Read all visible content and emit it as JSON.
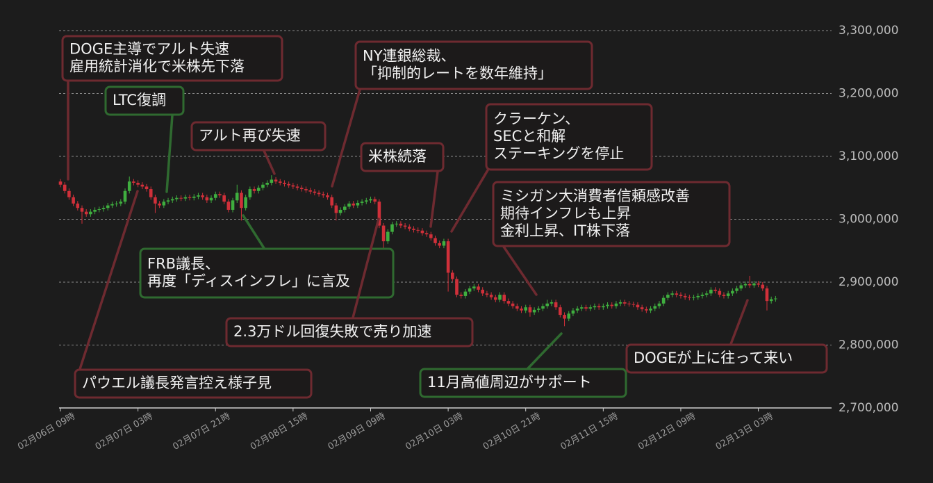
{
  "chart_data": {
    "type": "candlestick",
    "up_color": "#3fae3f",
    "down_color": "#d0303a",
    "grid": true,
    "xlim": [
      0,
      179
    ],
    "xticks": [
      {
        "value": 0,
        "label": "02月06日 09時"
      },
      {
        "value": 18,
        "label": "02月07日 03時"
      },
      {
        "value": 36,
        "label": "02月07日 21時"
      },
      {
        "value": 54,
        "label": "02月08日 15時"
      },
      {
        "value": 72,
        "label": "02月09日 09時"
      },
      {
        "value": 90,
        "label": "02月10日 03時"
      },
      {
        "value": 108,
        "label": "02月10日 21時"
      },
      {
        "value": 126,
        "label": "02月11日 15時"
      },
      {
        "value": 144,
        "label": "02月12日 09時"
      },
      {
        "value": 162,
        "label": "02月13日 03時"
      }
    ],
    "ylim": [
      2700000,
      3300000
    ],
    "yticks": [
      {
        "value": 2700000,
        "label": "2,700,000"
      },
      {
        "value": 2800000,
        "label": "2,800,000"
      },
      {
        "value": 2900000,
        "label": "2,900,000"
      },
      {
        "value": 3000000,
        "label": "3,000,000"
      },
      {
        "value": 3100000,
        "label": "3,100,000"
      },
      {
        "value": 3200000,
        "label": "3,200,000"
      },
      {
        "value": 3300000,
        "label": "3,300,000"
      }
    ],
    "x": [
      0,
      1,
      2,
      3,
      4,
      5,
      6,
      7,
      8,
      9,
      10,
      11,
      12,
      13,
      14,
      15,
      16,
      17,
      18,
      19,
      20,
      21,
      22,
      23,
      24,
      25,
      26,
      27,
      28,
      29,
      30,
      31,
      32,
      33,
      34,
      35,
      36,
      37,
      38,
      39,
      40,
      41,
      42,
      43,
      44,
      45,
      46,
      47,
      48,
      49,
      50,
      51,
      52,
      53,
      54,
      55,
      56,
      57,
      58,
      59,
      60,
      61,
      62,
      63,
      64,
      65,
      66,
      67,
      68,
      69,
      70,
      71,
      72,
      73,
      74,
      75,
      76,
      77,
      78,
      79,
      80,
      81,
      82,
      83,
      84,
      85,
      86,
      87,
      88,
      89,
      90,
      91,
      92,
      93,
      94,
      95,
      96,
      97,
      98,
      99,
      100,
      101,
      102,
      103,
      104,
      105,
      106,
      107,
      108,
      109,
      110,
      111,
      112,
      113,
      114,
      115,
      116,
      117,
      118,
      119,
      120,
      121,
      122,
      123,
      124,
      125,
      126,
      127,
      128,
      129,
      130,
      131,
      132,
      133,
      134,
      135,
      136,
      137,
      138,
      139,
      140,
      141,
      142,
      143,
      144,
      145,
      146,
      147,
      148,
      149,
      150,
      151,
      152,
      153,
      154,
      155,
      156,
      157,
      158,
      159,
      160,
      161,
      162,
      163,
      164,
      165,
      166
    ],
    "ohlc": [
      [
        3060000,
        3064000,
        3051000,
        3055000
      ],
      [
        3055000,
        3059000,
        3041000,
        3045000
      ],
      [
        3045000,
        3049000,
        3031000,
        3035000
      ],
      [
        3035000,
        3039000,
        3021000,
        3025000
      ],
      [
        3025000,
        3029000,
        3014000,
        3018000
      ],
      [
        3018000,
        3022000,
        2993000,
        3012000
      ],
      [
        3012000,
        3016000,
        3004000,
        3008000
      ],
      [
        3008000,
        3016000,
        3004000,
        3012000
      ],
      [
        3012000,
        3019000,
        3008000,
        3015000
      ],
      [
        3015000,
        3020000,
        3011000,
        3016000
      ],
      [
        3016000,
        3022000,
        3012000,
        3018000
      ],
      [
        3018000,
        3026000,
        3014000,
        3022000
      ],
      [
        3022000,
        3028000,
        3018000,
        3024000
      ],
      [
        3024000,
        3029000,
        3020000,
        3025000
      ],
      [
        3025000,
        3032000,
        3021000,
        3028000
      ],
      [
        3028000,
        3049000,
        3024000,
        3045000
      ],
      [
        3045000,
        3068000,
        3041000,
        3060000
      ],
      [
        3060000,
        3064000,
        3054000,
        3058000
      ],
      [
        3058000,
        3062000,
        3051000,
        3055000
      ],
      [
        3055000,
        3059000,
        3048000,
        3052000
      ],
      [
        3052000,
        3056000,
        3044000,
        3048000
      ],
      [
        3048000,
        3052000,
        3031000,
        3035000
      ],
      [
        3035000,
        3039000,
        3010000,
        3025000
      ],
      [
        3025000,
        3029000,
        3018000,
        3022000
      ],
      [
        3022000,
        3032000,
        3018000,
        3028000
      ],
      [
        3028000,
        3034000,
        3024000,
        3030000
      ],
      [
        3030000,
        3036000,
        3026000,
        3032000
      ],
      [
        3032000,
        3038000,
        3028000,
        3034000
      ],
      [
        3034000,
        3038000,
        3029000,
        3033000
      ],
      [
        3033000,
        3039000,
        3029000,
        3035000
      ],
      [
        3035000,
        3039000,
        3030000,
        3034000
      ],
      [
        3034000,
        3040000,
        3030000,
        3036000
      ],
      [
        3036000,
        3042000,
        3032000,
        3038000
      ],
      [
        3038000,
        3042000,
        3031000,
        3035000
      ],
      [
        3035000,
        3039000,
        3026000,
        3030000
      ],
      [
        3030000,
        3038000,
        3026000,
        3034000
      ],
      [
        3034000,
        3044000,
        3030000,
        3040000
      ],
      [
        3040000,
        3044000,
        3034000,
        3038000
      ],
      [
        3038000,
        3042000,
        3024000,
        3028000
      ],
      [
        3028000,
        3032000,
        3011000,
        3015000
      ],
      [
        3015000,
        3034000,
        3011000,
        3030000
      ],
      [
        3030000,
        3055000,
        3026000,
        3042000
      ],
      [
        3042000,
        3046000,
        2998000,
        3018000
      ],
      [
        3018000,
        3039000,
        3014000,
        3035000
      ],
      [
        3035000,
        3052000,
        3031000,
        3048000
      ],
      [
        3048000,
        3052000,
        3041000,
        3045000
      ],
      [
        3045000,
        3054000,
        3041000,
        3050000
      ],
      [
        3050000,
        3059000,
        3046000,
        3055000
      ],
      [
        3055000,
        3062000,
        3051000,
        3058000
      ],
      [
        3058000,
        3070000,
        3054000,
        3063000
      ],
      [
        3063000,
        3067000,
        3056000,
        3060000
      ],
      [
        3060000,
        3064000,
        3054000,
        3058000
      ],
      [
        3058000,
        3062000,
        3052000,
        3056000
      ],
      [
        3056000,
        3060000,
        3050000,
        3054000
      ],
      [
        3054000,
        3058000,
        3048000,
        3052000
      ],
      [
        3052000,
        3056000,
        3046000,
        3050000
      ],
      [
        3050000,
        3054000,
        3044000,
        3048000
      ],
      [
        3048000,
        3052000,
        3042000,
        3046000
      ],
      [
        3046000,
        3050000,
        3040000,
        3044000
      ],
      [
        3044000,
        3048000,
        3038000,
        3042000
      ],
      [
        3042000,
        3046000,
        3036000,
        3040000
      ],
      [
        3040000,
        3044000,
        3034000,
        3038000
      ],
      [
        3038000,
        3042000,
        3031000,
        3035000
      ],
      [
        3035000,
        3039000,
        3018000,
        3022000
      ],
      [
        3022000,
        3026000,
        2998000,
        3010000
      ],
      [
        3010000,
        3019000,
        3006000,
        3015000
      ],
      [
        3015000,
        3024000,
        3011000,
        3020000
      ],
      [
        3020000,
        3029000,
        3016000,
        3025000
      ],
      [
        3025000,
        3029000,
        3018000,
        3022000
      ],
      [
        3022000,
        3030000,
        3018000,
        3026000
      ],
      [
        3026000,
        3032000,
        3022000,
        3028000
      ],
      [
        3028000,
        3034000,
        3024000,
        3030000
      ],
      [
        3030000,
        3036000,
        3026000,
        3032000
      ],
      [
        3032000,
        3036000,
        3024000,
        3028000
      ],
      [
        3028000,
        3032000,
        2986000,
        2990000
      ],
      [
        2990000,
        2994000,
        2950000,
        2965000
      ],
      [
        2965000,
        2984000,
        2961000,
        2980000
      ],
      [
        2980000,
        2996000,
        2976000,
        2992000
      ],
      [
        2992000,
        2997000,
        2988000,
        2993000
      ],
      [
        2993000,
        2997000,
        2986000,
        2990000
      ],
      [
        2990000,
        2994000,
        2984000,
        2988000
      ],
      [
        2988000,
        2992000,
        2981000,
        2985000
      ],
      [
        2985000,
        2989000,
        2979000,
        2983000
      ],
      [
        2983000,
        2987000,
        2978000,
        2982000
      ],
      [
        2982000,
        2986000,
        2974000,
        2978000
      ],
      [
        2978000,
        2982000,
        2972000,
        2976000
      ],
      [
        2976000,
        2980000,
        2966000,
        2970000
      ],
      [
        2970000,
        2974000,
        2958000,
        2962000
      ],
      [
        2962000,
        2966000,
        2954000,
        2958000
      ],
      [
        2958000,
        2969000,
        2954000,
        2965000
      ],
      [
        2965000,
        2969000,
        2885000,
        2915000
      ],
      [
        2915000,
        2919000,
        2901000,
        2905000
      ],
      [
        2905000,
        2909000,
        2876000,
        2880000
      ],
      [
        2880000,
        2884000,
        2874000,
        2878000
      ],
      [
        2878000,
        2889000,
        2874000,
        2885000
      ],
      [
        2885000,
        2894000,
        2881000,
        2890000
      ],
      [
        2890000,
        2897000,
        2886000,
        2893000
      ],
      [
        2893000,
        2897000,
        2884000,
        2888000
      ],
      [
        2888000,
        2892000,
        2878000,
        2882000
      ],
      [
        2882000,
        2886000,
        2876000,
        2880000
      ],
      [
        2880000,
        2884000,
        2872000,
        2876000
      ],
      [
        2876000,
        2880000,
        2868000,
        2872000
      ],
      [
        2872000,
        2884000,
        2868000,
        2880000
      ],
      [
        2880000,
        2884000,
        2866000,
        2870000
      ],
      [
        2870000,
        2874000,
        2862000,
        2866000
      ],
      [
        2866000,
        2870000,
        2858000,
        2862000
      ],
      [
        2862000,
        2866000,
        2854000,
        2858000
      ],
      [
        2858000,
        2862000,
        2851000,
        2855000
      ],
      [
        2855000,
        2864000,
        2851000,
        2860000
      ],
      [
        2860000,
        2864000,
        2845000,
        2852000
      ],
      [
        2852000,
        2860000,
        2848000,
        2856000
      ],
      [
        2856000,
        2862000,
        2852000,
        2858000
      ],
      [
        2858000,
        2866000,
        2854000,
        2862000
      ],
      [
        2862000,
        2872000,
        2858000,
        2866000
      ],
      [
        2866000,
        2872000,
        2862000,
        2868000
      ],
      [
        2868000,
        2872000,
        2856000,
        2860000
      ],
      [
        2860000,
        2864000,
        2844000,
        2848000
      ],
      [
        2848000,
        2852000,
        2830000,
        2842000
      ],
      [
        2842000,
        2854000,
        2838000,
        2850000
      ],
      [
        2850000,
        2859000,
        2846000,
        2855000
      ],
      [
        2855000,
        2862000,
        2851000,
        2858000
      ],
      [
        2858000,
        2864000,
        2854000,
        2860000
      ],
      [
        2860000,
        2864000,
        2854000,
        2858000
      ],
      [
        2858000,
        2864000,
        2854000,
        2860000
      ],
      [
        2860000,
        2866000,
        2856000,
        2862000
      ],
      [
        2862000,
        2866000,
        2856000,
        2860000
      ],
      [
        2860000,
        2866000,
        2856000,
        2862000
      ],
      [
        2862000,
        2868000,
        2858000,
        2864000
      ],
      [
        2864000,
        2868000,
        2858000,
        2862000
      ],
      [
        2862000,
        2870000,
        2858000,
        2866000
      ],
      [
        2866000,
        2872000,
        2862000,
        2868000
      ],
      [
        2868000,
        2872000,
        2862000,
        2866000
      ],
      [
        2866000,
        2870000,
        2861000,
        2865000
      ],
      [
        2865000,
        2869000,
        2860000,
        2864000
      ],
      [
        2864000,
        2868000,
        2856000,
        2860000
      ],
      [
        2860000,
        2864000,
        2853000,
        2857000
      ],
      [
        2857000,
        2861000,
        2851000,
        2855000
      ],
      [
        2855000,
        2862000,
        2851000,
        2858000
      ],
      [
        2858000,
        2866000,
        2854000,
        2862000
      ],
      [
        2862000,
        2870000,
        2858000,
        2866000
      ],
      [
        2866000,
        2879000,
        2862000,
        2875000
      ],
      [
        2875000,
        2884000,
        2871000,
        2880000
      ],
      [
        2880000,
        2886000,
        2876000,
        2882000
      ],
      [
        2882000,
        2886000,
        2876000,
        2880000
      ],
      [
        2880000,
        2884000,
        2874000,
        2878000
      ],
      [
        2878000,
        2882000,
        2872000,
        2876000
      ],
      [
        2876000,
        2880000,
        2871000,
        2875000
      ],
      [
        2875000,
        2880000,
        2871000,
        2876000
      ],
      [
        2876000,
        2882000,
        2872000,
        2878000
      ],
      [
        2878000,
        2884000,
        2874000,
        2880000
      ],
      [
        2880000,
        2886000,
        2876000,
        2882000
      ],
      [
        2882000,
        2892000,
        2878000,
        2888000
      ],
      [
        2888000,
        2892000,
        2882000,
        2886000
      ],
      [
        2886000,
        2890000,
        2876000,
        2880000
      ],
      [
        2880000,
        2884000,
        2874000,
        2878000
      ],
      [
        2878000,
        2886000,
        2874000,
        2882000
      ],
      [
        2882000,
        2890000,
        2878000,
        2886000
      ],
      [
        2886000,
        2894000,
        2882000,
        2890000
      ],
      [
        2890000,
        2899000,
        2886000,
        2895000
      ],
      [
        2895000,
        2901000,
        2891000,
        2897000
      ],
      [
        2897000,
        2910000,
        2891000,
        2895000
      ],
      [
        2895000,
        2902000,
        2891000,
        2898000
      ],
      [
        2898000,
        2902000,
        2892000,
        2896000
      ],
      [
        2896000,
        2900000,
        2886000,
        2890000
      ],
      [
        2890000,
        2894000,
        2855000,
        2870000
      ],
      [
        2870000,
        2877000,
        2866000,
        2873000
      ],
      [
        2873000,
        2878000,
        2869000,
        2874000
      ]
    ],
    "annotations": [
      {
        "lines": [
          "DOGE主導でアルト失速",
          "雇用統計消化で米株先下落"
        ],
        "color": "#6e2a30"
      },
      {
        "lines": [
          "LTC復調"
        ],
        "color": "#2f6a30"
      },
      {
        "lines": [
          "アルト再び失速"
        ],
        "color": "#6e2a30"
      },
      {
        "lines": [
          "NY連銀総裁、",
          "「抑制的レートを数年維持」"
        ],
        "color": "#6e2a30"
      },
      {
        "lines": [
          "米株続落"
        ],
        "color": "#6e2a30"
      },
      {
        "lines": [
          "クラーケン、",
          "SECと和解",
          "ステーキングを停止"
        ],
        "color": "#6e2a30"
      },
      {
        "lines": [
          "ミシガン大消費者信頼感改善",
          "期待インフレも上昇",
          "金利上昇、IT株下落"
        ],
        "color": "#6e2a30"
      },
      {
        "lines": [
          "FRB議長、",
          "再度「ディスインフレ」に言及"
        ],
        "color": "#2f6a30"
      },
      {
        "lines": [
          "2.3万ドル回復失敗で売り加速"
        ],
        "color": "#6e2a30"
      },
      {
        "lines": [
          "パウエル議長発言控え様子見"
        ],
        "color": "#6e2a30"
      },
      {
        "lines": [
          "11月高値周辺がサポート"
        ],
        "color": "#2f6a30"
      },
      {
        "lines": [
          "DOGEが上に往って来い"
        ],
        "color": "#6e2a30"
      }
    ]
  }
}
